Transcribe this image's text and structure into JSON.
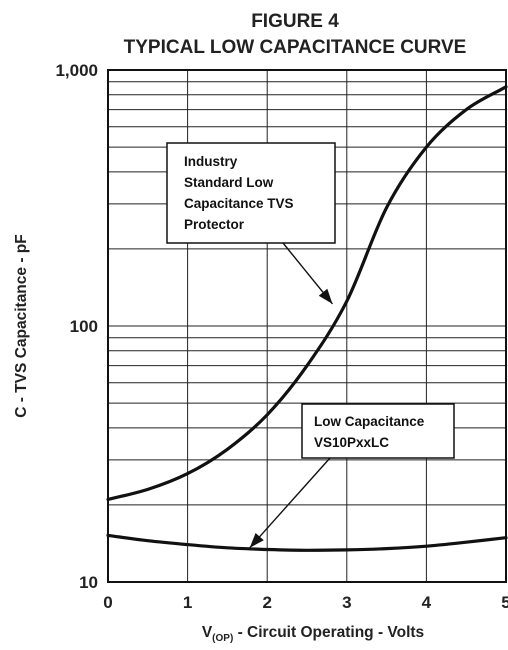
{
  "chart_data": {
    "type": "line",
    "title": "FIGURE 4",
    "subtitle": "TYPICAL LOW CAPACITANCE CURVE",
    "xlabel_main": "V",
    "xlabel_sub": "(OP)",
    "xlabel_rest": " - Circuit Operating - Volts",
    "ylabel": "C - TVS Capacitance - pF",
    "xlim": [
      0,
      5
    ],
    "ylim": [
      10,
      1000
    ],
    "yscale": "log",
    "grid": true,
    "x_ticks": [
      "0",
      "1",
      "2",
      "3",
      "4",
      "5"
    ],
    "y_ticks": [
      {
        "value": 10,
        "label": "10"
      },
      {
        "value": 100,
        "label": "100"
      },
      {
        "value": 1000,
        "label": "1,000"
      }
    ],
    "series": [
      {
        "id": "industry",
        "x": [
          0,
          0.5,
          1,
          1.5,
          2,
          2.5,
          3,
          3.5,
          4,
          4.5,
          5
        ],
        "y": [
          21,
          23,
          26.5,
          33,
          45,
          70,
          125,
          290,
          500,
          700,
          860
        ]
      },
      {
        "id": "low",
        "x": [
          0,
          0.5,
          1,
          1.5,
          2,
          2.5,
          3,
          3.5,
          4,
          4.5,
          5
        ],
        "y": [
          15.2,
          14.5,
          14,
          13.6,
          13.4,
          13.3,
          13.35,
          13.5,
          13.8,
          14.3,
          14.9
        ]
      }
    ],
    "annotations": [
      {
        "id": "industry-note",
        "lines": [
          "Industry",
          "Standard Low",
          "Capacitance TVS",
          "Protector"
        ],
        "points_to": {
          "x": 2.82,
          "y": 122
        }
      },
      {
        "id": "low-note",
        "lines": [
          "Low Capacitance",
          "VS10PxxLC"
        ],
        "points_to": {
          "x": 1.78,
          "y": 13.6
        }
      }
    ]
  }
}
